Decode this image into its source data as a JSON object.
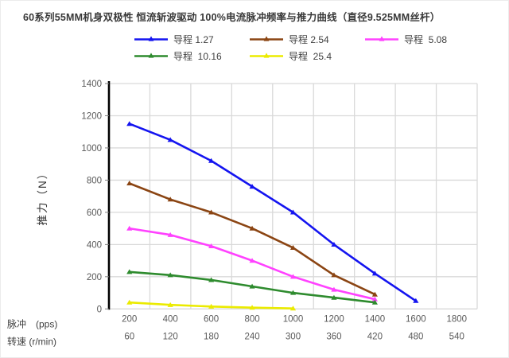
{
  "title": "60系列55MM机身双极性 恒流斩波驱动 100%电流脉冲频率与推力曲线（直径9.525MM丝杆）",
  "chart_data": {
    "type": "line",
    "title": "60系列55MM机身双极性 恒流斩波驱动 100%电流脉冲频率与推力曲线（直径9.525MM丝杆）",
    "ylabel": "推力（N）",
    "ylim": [
      0,
      1400
    ],
    "ytick_step": 200,
    "grid": true,
    "legend_position": "top",
    "marker": "triangle-up",
    "x_axis_rows": [
      {
        "caption": "脉冲　(pps)",
        "labels": [
          "200",
          "400",
          "600",
          "800",
          "1000",
          "1200",
          "1400",
          "1600",
          "1800"
        ]
      },
      {
        "caption": "转速 (r/min)",
        "labels": [
          "60",
          "120",
          "180",
          "240",
          "300",
          "360",
          "420",
          "480",
          "540"
        ]
      }
    ],
    "series": [
      {
        "name": "导程 1.27",
        "color": "#1414f0",
        "values": [
          1150,
          1050,
          920,
          760,
          600,
          400,
          220,
          50,
          null
        ]
      },
      {
        "name": "导程 2.54",
        "color": "#8b4513",
        "values": [
          780,
          680,
          600,
          500,
          380,
          210,
          90,
          null,
          null
        ]
      },
      {
        "name": "导程  5.08",
        "color": "#ff42ff",
        "values": [
          500,
          460,
          390,
          300,
          200,
          120,
          60,
          null,
          null
        ]
      },
      {
        "name": "导程  10.16",
        "color": "#2e8b2e",
        "values": [
          230,
          210,
          180,
          140,
          100,
          70,
          40,
          null,
          null
        ]
      },
      {
        "name": "导程  25.4",
        "color": "#ebeb00",
        "values": [
          40,
          25,
          15,
          8,
          3,
          null,
          null,
          null,
          null
        ]
      }
    ],
    "colors": {
      "grid": "#d9d9d9",
      "axis": "#000000",
      "tick_labels": "#595959",
      "axis_captions": "#404040",
      "y_axis_title": "#333333"
    }
  }
}
